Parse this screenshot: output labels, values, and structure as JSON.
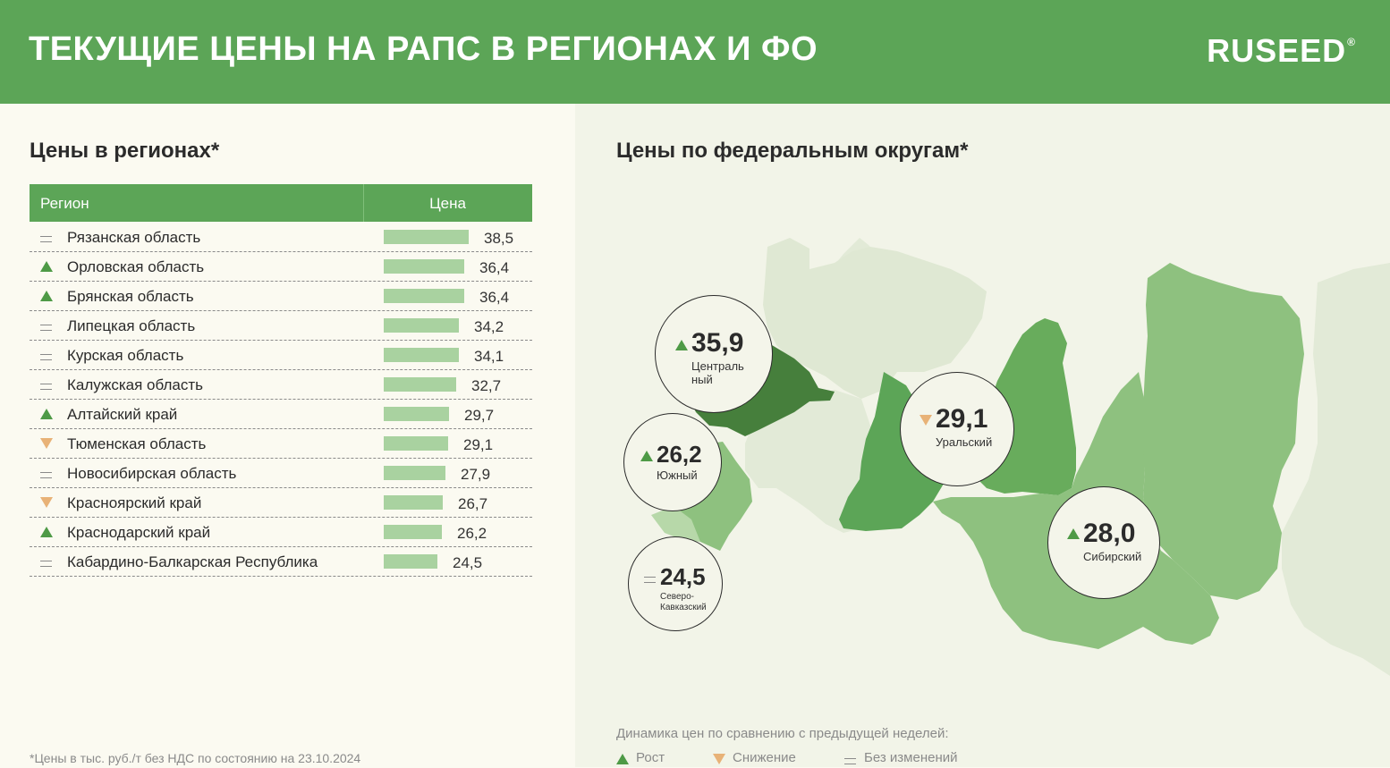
{
  "header": {
    "title": "ТЕКУЩИЕ ЦЕНЫ НА РАПС В РЕГИОНАХ И ФО",
    "logo": "RUSEED",
    "logo_mark": "®"
  },
  "left": {
    "title": "Цены в регионах*",
    "col_region": "Регион",
    "col_price": "Цена",
    "footnote": "*Цены в тыс. руб./т без НДС по состоянию на 23.10.2024"
  },
  "right": {
    "title": "Цены по федеральным округам*",
    "legend_title": "Динамика цен по сравнению с предыдущей неделей:",
    "legend": [
      {
        "trend": "up",
        "label": "Рост"
      },
      {
        "trend": "down",
        "label": "Снижение"
      },
      {
        "trend": "same",
        "label": "Без изменений"
      }
    ]
  },
  "colors": {
    "header": "#5ca557",
    "bar": "#a9d2a0",
    "up": "#4e9a46",
    "down": "#e8b277",
    "same": "#8a8a8a"
  },
  "chart_data": [
    {
      "type": "bar",
      "title": "Цены в регионах*",
      "categories": [
        "Рязанская область",
        "Орловская область",
        "Брянская область",
        "Липецкая область",
        "Курская область",
        "Калужская область",
        "Алтайский край",
        "Тюменская область",
        "Новосибирская область",
        "Красноярский край",
        "Краснодарский край",
        "Кабардино-Балкарская Республика"
      ],
      "values": [
        38.5,
        36.4,
        36.4,
        34.2,
        34.1,
        32.7,
        29.7,
        29.1,
        27.9,
        26.7,
        26.2,
        24.5
      ],
      "labels": [
        "38,5",
        "36,4",
        "36,4",
        "34,2",
        "34,1",
        "32,7",
        "29,7",
        "29,1",
        "27,9",
        "26,7",
        "26,2",
        "24,5"
      ],
      "trends": [
        "same",
        "up",
        "up",
        "same",
        "same",
        "same",
        "up",
        "down",
        "same",
        "down",
        "up",
        "same"
      ]
    },
    {
      "type": "table",
      "title": "Цены по федеральным округам*",
      "districts": [
        {
          "name": "Центральный",
          "name_lines": [
            "Централь",
            "ный"
          ],
          "value": 35.9,
          "label": "35,9",
          "trend": "up"
        },
        {
          "name": "Уральский",
          "name_lines": [
            "Уральский"
          ],
          "value": 29.1,
          "label": "29,1",
          "trend": "down"
        },
        {
          "name": "Южный",
          "name_lines": [
            "Южный"
          ],
          "value": 26.2,
          "label": "26,2",
          "trend": "up"
        },
        {
          "name": "Сибирский",
          "name_lines": [
            "Сибирский"
          ],
          "value": 28.0,
          "label": "28,0",
          "trend": "up"
        },
        {
          "name": "Северо-Кавказский",
          "name_lines": [
            "Северо-",
            "Кавказский"
          ],
          "value": 24.5,
          "label": "24,5",
          "trend": "same"
        }
      ]
    }
  ]
}
